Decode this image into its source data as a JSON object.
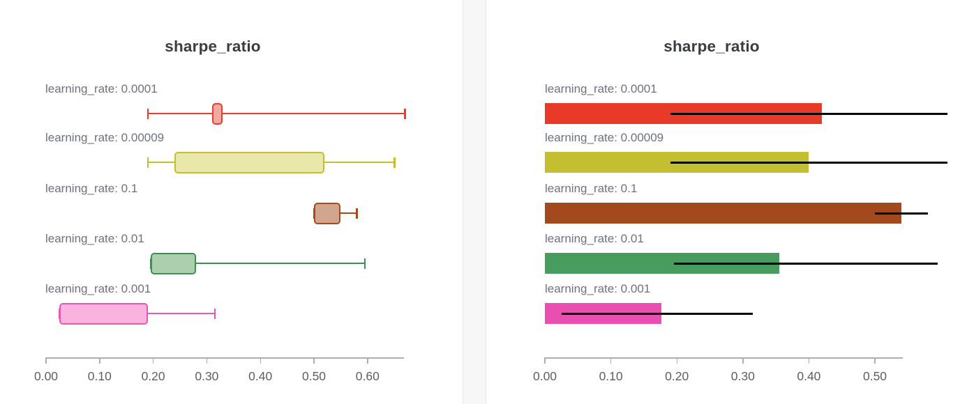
{
  "page": {
    "background": "#ffffff"
  },
  "divider": {
    "fill": "#f7f7f8",
    "border": "#e3e3e4"
  },
  "chart_data": [
    {
      "type": "boxplot",
      "orientation": "horizontal",
      "title": "sharpe_ratio",
      "categories": [
        "learning_rate: 0.0001",
        "learning_rate: 0.00009",
        "learning_rate: 0.1",
        "learning_rate: 0.01",
        "learning_rate: 0.001"
      ],
      "boxes": [
        {
          "min": 0.19,
          "q1": 0.31,
          "q3": 0.33,
          "max": 0.67
        },
        {
          "min": 0.19,
          "q1": 0.24,
          "q3": 0.52,
          "max": 0.65
        },
        {
          "min": 0.5,
          "q1": 0.5,
          "q3": 0.55,
          "max": 0.58
        },
        {
          "min": 0.195,
          "q1": 0.195,
          "q3": 0.28,
          "max": 0.595
        },
        {
          "min": 0.025,
          "q1": 0.025,
          "q3": 0.19,
          "max": 0.315
        }
      ],
      "colors": [
        {
          "stroke": "#e93e2c",
          "fill": "#f3a9a1"
        },
        {
          "stroke": "#c4bf31",
          "fill": "#eae7ab"
        },
        {
          "stroke": "#a74b1b",
          "fill": "#d1a68f"
        },
        {
          "stroke": "#3f8f51",
          "fill": "#accfad"
        },
        {
          "stroke": "#e957b1",
          "fill": "#f8b3df"
        }
      ],
      "xticks": [
        "0.00",
        "0.10",
        "0.20",
        "0.30",
        "0.40",
        "0.50",
        "0.60"
      ],
      "xlim": [
        0,
        0.668
      ],
      "label_color": "#6e7280",
      "axis_line_color": "#aeaeb2",
      "tick_label_color": "#5c5f69",
      "grid": false,
      "legend": "none"
    },
    {
      "type": "bar",
      "orientation": "horizontal",
      "title": "sharpe_ratio",
      "categories": [
        "learning_rate: 0.0001",
        "learning_rate: 0.00009",
        "learning_rate: 0.1",
        "learning_rate: 0.01",
        "learning_rate: 0.001"
      ],
      "values": [
        0.42,
        0.4,
        0.54,
        0.355,
        0.177
      ],
      "error_bars": [
        {
          "lo": 0.19,
          "hi": 0.67
        },
        {
          "lo": 0.19,
          "hi": 0.65
        },
        {
          "lo": 0.5,
          "hi": 0.58
        },
        {
          "lo": 0.195,
          "hi": 0.595
        },
        {
          "lo": 0.025,
          "hi": 0.315
        }
      ],
      "bar_colors": [
        "#e93a29",
        "#c4bf31",
        "#a2491d",
        "#489c5d",
        "#e94fb0"
      ],
      "error_bar_color": "#000000",
      "xticks": [
        "0.00",
        "0.10",
        "0.20",
        "0.30",
        "0.40",
        "0.50"
      ],
      "xlim": [
        0,
        0.542
      ],
      "label_color": "#6e7280",
      "axis_line_color": "#aeaeb2",
      "tick_label_color": "#5c5f69",
      "grid": false,
      "legend": "none"
    }
  ]
}
